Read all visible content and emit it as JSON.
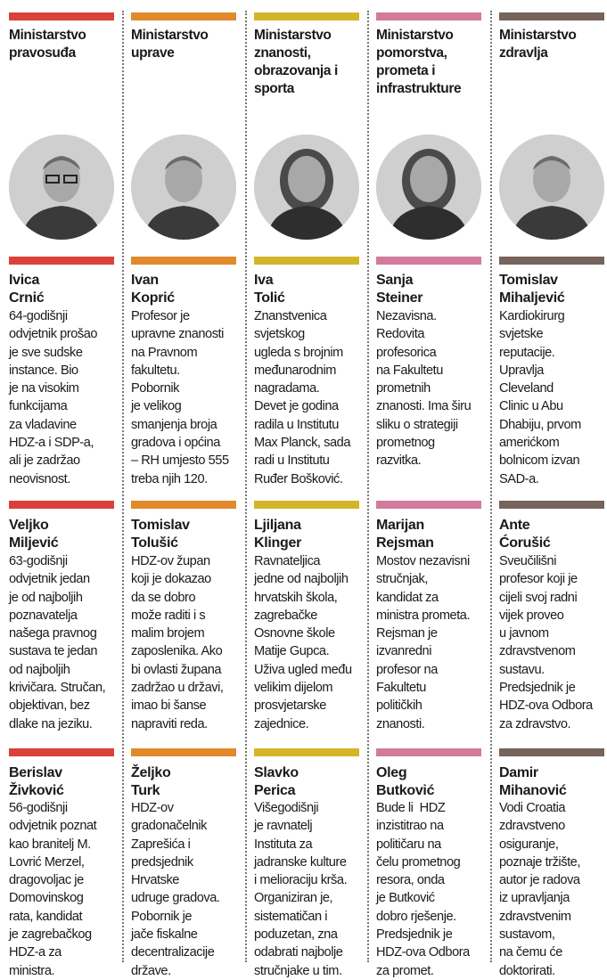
{
  "columns": [
    {
      "color": "#d9413a",
      "ministry": "Ministarstvo\npravosuđa",
      "photo_icon": "portrait-man-glasses",
      "people": [
        {
          "name": "Ivica\nCrnić",
          "bio": "64-godišnji\nodvjetnik prošao\nje sve sudske\ninstance. Bio\nje na visokim\nfunkcijama\nza vladavine\nHDZ-a i SDP-a,\nali je zadržao\nneovisnost."
        },
        {
          "name": "Veljko\nMiljević",
          "bio": "63-godišnji\nodvjetnik jedan\nje od najboljih\npoznavatelja\nnašega pravnog\nsustava te jedan\nod najboljih\nkrivičara. Stručan,\nobjektivan, bez\ndlake na jeziku."
        },
        {
          "name": "Berislav\nŽivković",
          "bio": "56-godišnji\nodvjetnik poznat\nkao branitelj M.\nLovrić Merzel,\ndragovoljac je\nDomovinskog\nrata, kandidat\nje zagrebačkog\nHDZ-a za\nministra."
        }
      ]
    },
    {
      "color": "#e08a2c",
      "ministry": "Ministarstvo\nuprave",
      "photo_icon": "portrait-man",
      "people": [
        {
          "name": "Ivan\nKoprić",
          "bio": "Profesor je\nupravne znanosti\nna Pravnom\nfakultetu.\nPobornik\nje velikog\nsmanjenja broja\ngradova i općina\n– RH umjesto 555\ntreba njih 120."
        },
        {
          "name": "Tomislav\nTolušić",
          "bio": "HDZ-ov župan\nkoji je dokazao\nda se dobro\nmože raditi i s\nmalim brojem\nzaposlenika. Ako\nbi ovlasti župana\nzadržao u državi,\nimao bi šanse\nnapraviti reda."
        },
        {
          "name": "Željko\nTurk",
          "bio": "HDZ-ov\ngradonačelnik\nZaprešića i\npredsjednik\nHrvatske\nudruge gradova.\nPobornik je\njače fiskalne\ndecentralizacije\ndržave."
        }
      ]
    },
    {
      "color": "#d4b52a",
      "ministry": "Ministarstvo\nznanosti,\nobrazovanja i\nsporta",
      "photo_icon": "portrait-woman",
      "people": [
        {
          "name": "Iva\nTolić",
          "bio": "Znanstvenica\nsvjetskog\nugleda s brojnim\nmeđunarodnim\nnagradama.\nDevet je godina\nradila u Institutu\nMax Planck, sada\nradi u Institutu\nRuđer Bošković."
        },
        {
          "name": "Ljiljana\nKlinger",
          "bio": "Ravnateljica\njedne od najboljih\nhrvatskih škola,\nzagrebačke\nOsnovne škole\nMatije Gupca.\nUživa ugled među\nvelikim dijelom\nprosvjetarske\nzajednice."
        },
        {
          "name": "Slavko\nPerica",
          "bio": "Višegodišnji\nje ravnatelj\nInstituta za\njadranske kulture\ni melioraciju krša.\nOrganiziran je,\nsistematičan i\npoduzetan, zna\nodabrati najbolje\nstručnjake u tim."
        }
      ]
    },
    {
      "color": "#d27b9c",
      "ministry": "Ministarstvo\npomorstva,\nprometa i\ninfrastrukture",
      "photo_icon": "portrait-woman",
      "people": [
        {
          "name": "Sanja\nSteiner",
          "bio": "Nezavisna.\nRedovita\nprofesorica\nna Fakultetu\nprometnih\nznanosti. Ima širu\nsliku o strategiji\nprometnog\nrazvitka."
        },
        {
          "name": "Marijan\nRejsman",
          "bio": "Mostov nezavisni\nstručnjak,\nkandidat za\nministra prometa.\nRejsman je\nizvanredni\nprofesor na\nFakultetu\npolitičkih\nznanosti."
        },
        {
          "name": "Oleg\nButković",
          "bio": "Bude li  HDZ\ninzistitrao na\npolitičaru na\nčelu prometnog\nresora, onda\nje Butković\ndobro rješenje.\nPredsjednik je\nHDZ-ova Odbora\nza promet."
        }
      ]
    },
    {
      "color": "#76635a",
      "ministry": "Ministarstvo\nzdravlja",
      "photo_icon": "portrait-man",
      "people": [
        {
          "name": "Tomislav\nMihaljević",
          "bio": "Kardiokirurg\nsvjetske\nreputacije.\nUpravlja\nCleveland\nClinic u Abu\nDhabiju, prvom\namerićkom\nbolnicom izvan\nSAD-a."
        },
        {
          "name": "Ante\nĆorušić",
          "bio": "Sveučilišni\nprofesor koji je\ncijeli svoj radni\nvijek proveo\nu javnom\nzdravstvenom\nsustavu.\nPredsjednik je\nHDZ-ova Odbora\nza zdravstvo."
        },
        {
          "name": "Damir\nMihanović",
          "bio": "Vodi Croatia\nzdravstveno\nosiguranje,\npoznaje tržište,\nautor je radova\niz upravljanja\nzdravstvenim\nsustavom,\nna čemu će\ndoktorirati."
        }
      ]
    }
  ]
}
